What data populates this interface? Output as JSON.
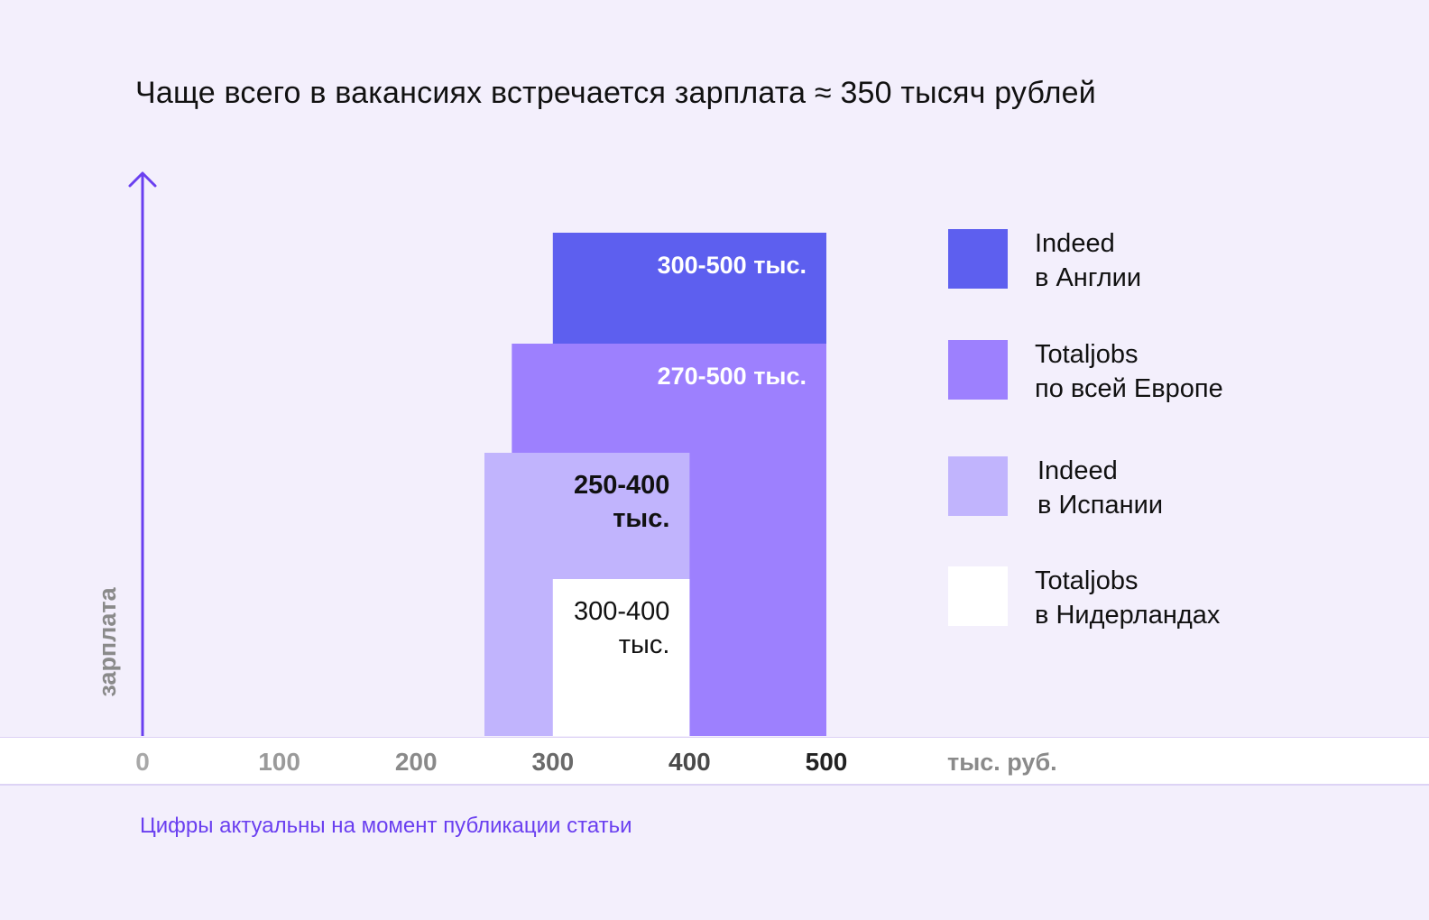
{
  "title": "Чаще всего в вакансиях встречается зарплата ≈ 350 тысяч рублей",
  "footnote": "Цифры актуальны на момент публикации статьи",
  "colors": {
    "background": "#f3effc",
    "axis_arrow": "#6a3ff0",
    "indeed_england": "#5d5fef",
    "totaljobs_europe": "#9d80fe",
    "indeed_spain": "#c1b4fd",
    "totaljobs_netherlands": "#ffffff"
  },
  "chart_data": {
    "type": "bar",
    "title": "Чаще всего в вакансиях встречается зарплата ≈ 350 тысяч рублей",
    "ylabel": "зарплата",
    "xlabel": "тыс. руб.",
    "xlim": [
      0,
      500
    ],
    "x_ticks": [
      "0",
      "100",
      "200",
      "300",
      "400",
      "500"
    ],
    "grid": false,
    "legend_position": "right",
    "series": [
      {
        "name": "Indeed\nв Англии",
        "range": [
          300,
          500
        ],
        "label": "300-500 тыс.",
        "color": "#5d5fef",
        "label_color": "#ffffff"
      },
      {
        "name": "Totaljobs\nпо всей Европе",
        "range": [
          270,
          500
        ],
        "label": "270-500 тыс.",
        "color": "#9d80fe",
        "label_color": "#ffffff"
      },
      {
        "name": "Indeed\nв Испании",
        "range": [
          250,
          400
        ],
        "label": "250-400\nтыс.",
        "color": "#c1b4fd",
        "label_color": "#111111"
      },
      {
        "name": "Totaljobs\nв Нидерландах",
        "range": [
          300,
          400
        ],
        "label": "300-400\nтыс.",
        "color": "#ffffff",
        "label_color": "#111111"
      }
    ]
  }
}
